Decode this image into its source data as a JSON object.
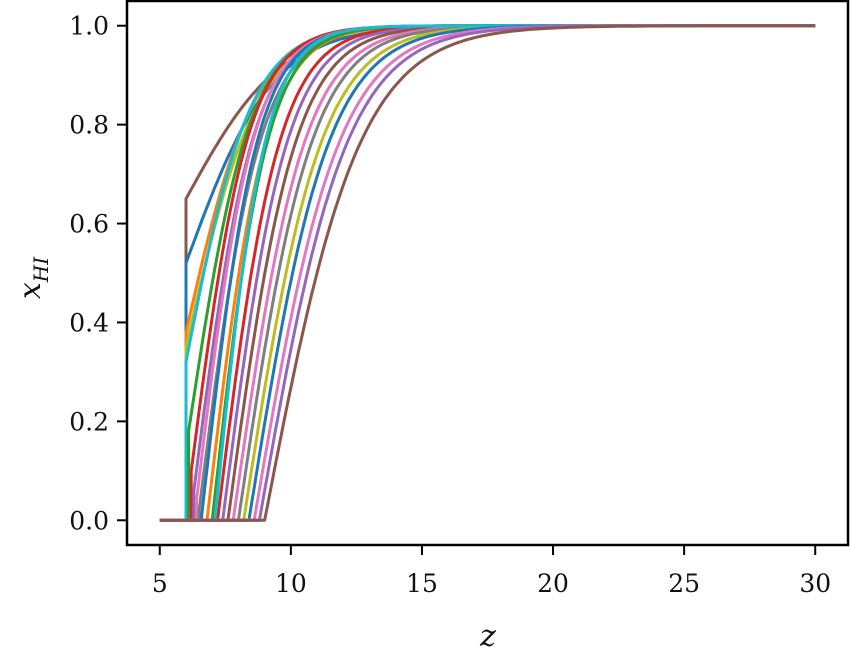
{
  "chart_data": {
    "type": "line",
    "title": "",
    "xlabel": "z",
    "ylabel": {
      "base": "x",
      "sub": "HI"
    },
    "xlim": [
      3.75,
      31.25
    ],
    "ylim": [
      -0.05,
      1.05
    ],
    "xticks": [
      5,
      10,
      15,
      20,
      25,
      30
    ],
    "yticks": [
      0.0,
      0.2,
      0.4,
      0.6,
      0.8,
      1.0
    ],
    "xtick_labels": [
      "5",
      "10",
      "15",
      "20",
      "25",
      "30"
    ],
    "ytick_labels": [
      "0.0",
      "0.2",
      "0.4",
      "0.6",
      "0.8",
      "1.0"
    ],
    "grid": false,
    "legend": "none",
    "x_range": [
      5,
      30
    ],
    "series_model": "logistic rise from z_start to 1.0, each curve given by start redshift, width and starting value",
    "series": [
      {
        "color": "#8c564b",
        "z_start": 6.0,
        "y_start": 0.65,
        "k": 0.55
      },
      {
        "color": "#1f77b4",
        "z_start": 6.0,
        "y_start": 0.52,
        "k": 0.6
      },
      {
        "color": "#ff7f0e",
        "z_start": 6.0,
        "y_start": 0.38,
        "k": 0.75
      },
      {
        "color": "#bcbd22",
        "z_start": 6.0,
        "y_start": 0.35,
        "k": 0.72
      },
      {
        "color": "#17becf",
        "z_start": 6.0,
        "y_start": 0.32,
        "k": 0.8
      },
      {
        "color": "#2ca02c",
        "z_start": 6.1,
        "y_start": 0.18,
        "k": 0.85
      },
      {
        "color": "#d62728",
        "z_start": 6.2,
        "y_start": 0.1,
        "k": 0.9
      },
      {
        "color": "#9467bd",
        "z_start": 6.3,
        "y_start": 0.06,
        "k": 0.88
      },
      {
        "color": "#e377c2",
        "z_start": 6.4,
        "y_start": 0.04,
        "k": 0.92
      },
      {
        "color": "#7f7f7f",
        "z_start": 6.5,
        "y_start": 0.02,
        "k": 0.86
      },
      {
        "color": "#1f77b4",
        "z_start": 6.6,
        "y_start": 0.01,
        "k": 0.95
      },
      {
        "color": "#ff7f0e",
        "z_start": 6.8,
        "y_start": 0.0,
        "k": 0.9
      },
      {
        "color": "#2ca02c",
        "z_start": 7.0,
        "y_start": 0.0,
        "k": 0.96
      },
      {
        "color": "#d62728",
        "z_start": 7.2,
        "y_start": 0.0,
        "k": 0.85
      },
      {
        "color": "#9467bd",
        "z_start": 7.4,
        "y_start": 0.0,
        "k": 0.82
      },
      {
        "color": "#8c564b",
        "z_start": 7.6,
        "y_start": 0.0,
        "k": 0.78
      },
      {
        "color": "#e377c2",
        "z_start": 7.8,
        "y_start": 0.0,
        "k": 0.74
      },
      {
        "color": "#7f7f7f",
        "z_start": 8.0,
        "y_start": 0.0,
        "k": 0.72
      },
      {
        "color": "#bcbd22",
        "z_start": 8.2,
        "y_start": 0.0,
        "k": 0.68
      },
      {
        "color": "#17becf",
        "z_start": 7.1,
        "y_start": 0.0,
        "k": 1.05
      },
      {
        "color": "#1f77b4",
        "z_start": 8.4,
        "y_start": 0.0,
        "k": 0.66
      },
      {
        "color": "#e377c2",
        "z_start": 8.6,
        "y_start": 0.0,
        "k": 0.62
      },
      {
        "color": "#9467bd",
        "z_start": 8.8,
        "y_start": 0.0,
        "k": 0.6
      },
      {
        "color": "#8c564b",
        "z_start": 9.0,
        "y_start": 0.0,
        "k": 0.55
      }
    ]
  }
}
